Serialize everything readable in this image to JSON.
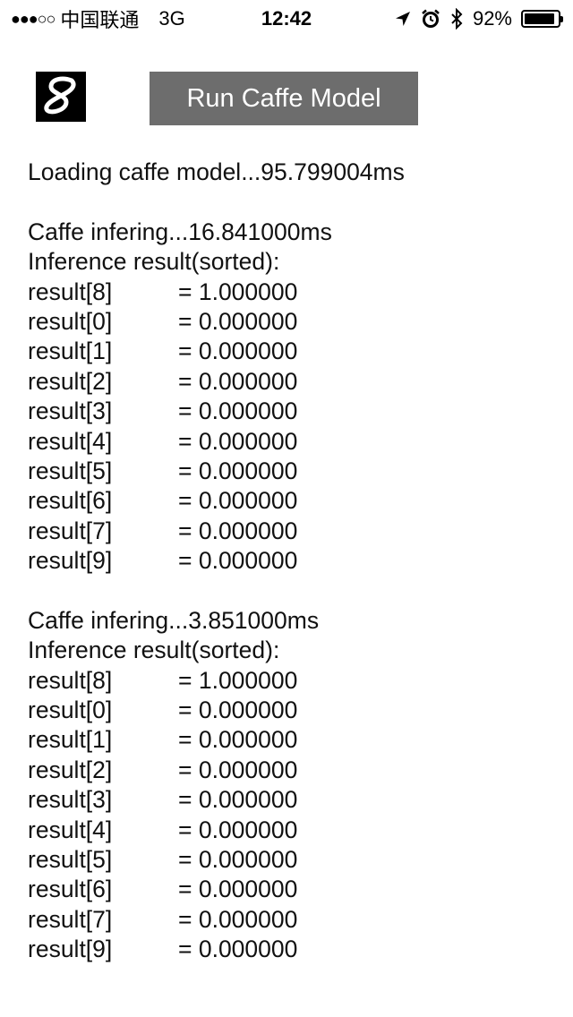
{
  "status_bar": {
    "signal": "●●●○○",
    "carrier": "中国联通",
    "network": "3G",
    "time": "12:42",
    "battery_percent": "92%",
    "battery_level": 0.92,
    "icons": [
      "location-arrow-icon",
      "alarm-clock-icon",
      "bluetooth-icon",
      "battery-icon"
    ]
  },
  "header": {
    "run_button_label": "Run Caffe Model",
    "thumbnail_icon": "handwritten-digit-image"
  },
  "log": {
    "loading_line": "Loading caffe model...95.799004ms",
    "runs": [
      {
        "infer_line": "Caffe infering...16.841000ms",
        "sorted_header": "Inference result(sorted):",
        "results": [
          {
            "label": "result[8]",
            "value": "= 1.000000"
          },
          {
            "label": "result[0]",
            "value": "= 0.000000"
          },
          {
            "label": "result[1]",
            "value": "= 0.000000"
          },
          {
            "label": "result[2]",
            "value": "= 0.000000"
          },
          {
            "label": "result[3]",
            "value": "= 0.000000"
          },
          {
            "label": "result[4]",
            "value": "= 0.000000"
          },
          {
            "label": "result[5]",
            "value": "= 0.000000"
          },
          {
            "label": "result[6]",
            "value": "= 0.000000"
          },
          {
            "label": "result[7]",
            "value": "= 0.000000"
          },
          {
            "label": "result[9]",
            "value": "= 0.000000"
          }
        ]
      },
      {
        "infer_line": "Caffe infering...3.851000ms",
        "sorted_header": "Inference result(sorted):",
        "results": [
          {
            "label": "result[8]",
            "value": "= 1.000000"
          },
          {
            "label": "result[0]",
            "value": "= 0.000000"
          },
          {
            "label": "result[1]",
            "value": "= 0.000000"
          },
          {
            "label": "result[2]",
            "value": "= 0.000000"
          },
          {
            "label": "result[3]",
            "value": "= 0.000000"
          },
          {
            "label": "result[4]",
            "value": "= 0.000000"
          },
          {
            "label": "result[5]",
            "value": "= 0.000000"
          },
          {
            "label": "result[6]",
            "value": "= 0.000000"
          },
          {
            "label": "result[7]",
            "value": "= 0.000000"
          },
          {
            "label": "result[9]",
            "value": "= 0.000000"
          }
        ]
      }
    ]
  }
}
